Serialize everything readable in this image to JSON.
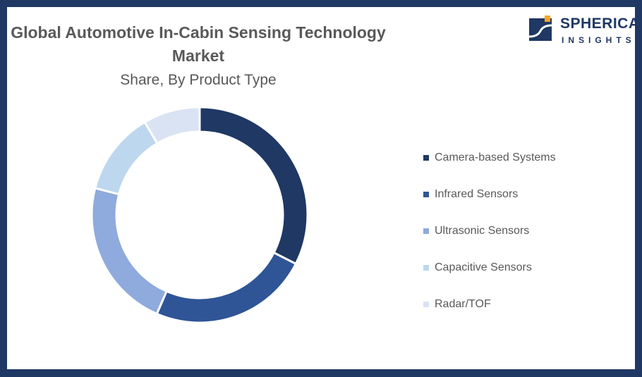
{
  "chart_data": {
    "type": "pie",
    "variant": "donut",
    "title": "Global Automotive In-Cabin Sensing Technology Market",
    "subtitle": "Share, By Product Type",
    "categories": [
      "Camera-based Systems",
      "Infrared Sensors",
      "Ultrasonic Sensors",
      "Capacitive Sensors",
      "Radar/TOF"
    ],
    "values": [
      32.5,
      24,
      22.5,
      12.5,
      8.5
    ],
    "colors": [
      "#1f3864",
      "#2f5597",
      "#8faadc",
      "#bdd7ee",
      "#dae3f3"
    ],
    "legend": "right"
  },
  "logo": {
    "line1": "SPHERICAL",
    "line2": "INSIGHTS"
  }
}
